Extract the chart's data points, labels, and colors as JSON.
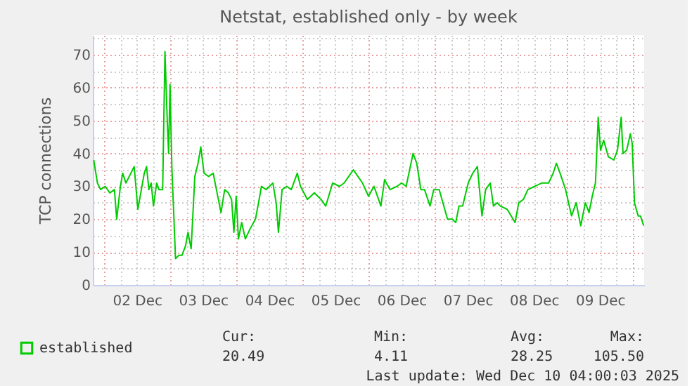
{
  "chart_data": {
    "type": "line",
    "title": "Netstat, established only - by week",
    "ylabel": "TCP connections",
    "xlim": [
      "2025-12-01T20:00",
      "2025-12-10T04:00"
    ],
    "ylim": [
      0,
      76
    ],
    "yticks": [
      0,
      {
        "value": 5,
        "label": null
      },
      10,
      {
        "value": 15,
        "label": null
      },
      20,
      {
        "value": 25,
        "label": null
      },
      30,
      {
        "value": 35,
        "label": null
      },
      40,
      {
        "value": 45,
        "label": null
      },
      50,
      {
        "value": 55,
        "label": null
      },
      60,
      {
        "value": 65,
        "label": null
      },
      70,
      {
        "value": 75,
        "label": null
      }
    ],
    "xticks": [
      {
        "value": "2025-12-02T00:00",
        "label": null
      },
      {
        "value": "2025-12-02T06:00",
        "label": null
      },
      {
        "value": "2025-12-02T12:00",
        "label": "02 Dec"
      },
      {
        "value": "2025-12-02T18:00",
        "label": null
      },
      {
        "value": "2025-12-03T00:00",
        "label": null
      },
      {
        "value": "2025-12-03T06:00",
        "label": null
      },
      {
        "value": "2025-12-03T12:00",
        "label": "03 Dec"
      },
      {
        "value": "2025-12-03T18:00",
        "label": null
      },
      {
        "value": "2025-12-04T00:00",
        "label": null
      },
      {
        "value": "2025-12-04T06:00",
        "label": null
      },
      {
        "value": "2025-12-04T12:00",
        "label": "04 Dec"
      },
      {
        "value": "2025-12-04T18:00",
        "label": null
      },
      {
        "value": "2025-12-05T00:00",
        "label": null
      },
      {
        "value": "2025-12-05T06:00",
        "label": null
      },
      {
        "value": "2025-12-05T12:00",
        "label": "05 Dec"
      },
      {
        "value": "2025-12-05T18:00",
        "label": null
      },
      {
        "value": "2025-12-06T00:00",
        "label": null
      },
      {
        "value": "2025-12-06T06:00",
        "label": null
      },
      {
        "value": "2025-12-06T12:00",
        "label": "06 Dec"
      },
      {
        "value": "2025-12-06T18:00",
        "label": null
      },
      {
        "value": "2025-12-07T00:00",
        "label": null
      },
      {
        "value": "2025-12-07T06:00",
        "label": null
      },
      {
        "value": "2025-12-07T12:00",
        "label": "07 Dec"
      },
      {
        "value": "2025-12-07T18:00",
        "label": null
      },
      {
        "value": "2025-12-08T00:00",
        "label": null
      },
      {
        "value": "2025-12-08T06:00",
        "label": null
      },
      {
        "value": "2025-12-08T12:00",
        "label": "08 Dec"
      },
      {
        "value": "2025-12-08T18:00",
        "label": null
      },
      {
        "value": "2025-12-09T00:00",
        "label": null
      },
      {
        "value": "2025-12-09T06:00",
        "label": null
      },
      {
        "value": "2025-12-09T12:00",
        "label": "09 Dec"
      },
      {
        "value": "2025-12-09T18:00",
        "label": null
      },
      {
        "value": "2025-12-10T00:00",
        "label": null
      }
    ],
    "grid": true,
    "legend": "bottom left",
    "annotations": [
      "Cur:",
      "Min:",
      "Avg:",
      "Max:",
      "20.49",
      "4.11",
      "28.25",
      "105.50",
      "Last update: Wed Dec 10 04:00:03 2025"
    ],
    "series": [
      {
        "name": "established",
        "color": "#00cc00",
        "x": [
          "2025-12-01T20:20",
          "2025-12-01T21:40",
          "2025-12-01T22:50",
          "2025-12-02T00:30",
          "2025-12-02T02:10",
          "2025-12-02T03:50",
          "2025-12-02T04:40",
          "2025-12-02T06:00",
          "2025-12-02T06:50",
          "2025-12-02T08:00",
          "2025-12-02T11:00",
          "2025-12-02T12:20",
          "2025-12-02T14:40",
          "2025-12-02T15:30",
          "2025-12-02T16:20",
          "2025-12-02T17:10",
          "2025-12-02T18:00",
          "2025-12-02T19:10",
          "2025-12-02T20:00",
          "2025-12-02T21:20",
          "2025-12-02T22:10",
          "2025-12-02T23:00",
          "2025-12-02T23:30",
          "2025-12-03T00:00",
          "2025-12-03T00:40",
          "2025-12-03T02:00",
          "2025-12-03T03:10",
          "2025-12-03T04:20",
          "2025-12-03T05:40",
          "2025-12-03T06:30",
          "2025-12-03T07:40",
          "2025-12-03T09:00",
          "2025-12-03T10:10",
          "2025-12-03T11:10",
          "2025-12-03T12:20",
          "2025-12-03T14:00",
          "2025-12-03T15:40",
          "2025-12-03T16:50",
          "2025-12-03T18:30",
          "2025-12-03T19:50",
          "2025-12-03T21:10",
          "2025-12-03T22:20",
          "2025-12-03T23:10",
          "2025-12-04T00:00",
          "2025-12-04T00:50",
          "2025-12-04T02:00",
          "2025-12-04T03:20",
          "2025-12-04T05:00",
          "2025-12-04T07:00",
          "2025-12-04T08:20",
          "2025-12-04T09:10",
          "2025-12-04T10:50",
          "2025-12-04T13:20",
          "2025-12-04T14:30",
          "2025-12-04T15:20",
          "2025-12-04T16:40",
          "2025-12-04T18:20",
          "2025-12-04T20:00",
          "2025-12-04T22:10",
          "2025-12-04T23:20",
          "2025-12-05T01:50",
          "2025-12-05T04:20",
          "2025-12-05T06:50",
          "2025-12-05T08:30",
          "2025-12-05T11:00",
          "2025-12-05T13:30",
          "2025-12-05T15:10",
          "2025-12-05T18:30",
          "2025-12-05T20:10",
          "2025-12-05T21:50",
          "2025-12-06T00:00",
          "2025-12-06T02:00",
          "2025-12-06T04:30",
          "2025-12-06T05:50",
          "2025-12-06T07:50",
          "2025-12-06T10:20",
          "2025-12-06T12:00",
          "2025-12-06T13:40",
          "2025-12-06T16:10",
          "2025-12-06T17:30",
          "2025-12-06T19:00",
          "2025-12-06T20:20",
          "2025-12-06T22:20",
          "2025-12-06T23:40",
          "2025-12-07T01:40",
          "2025-12-07T03:00",
          "2025-12-07T04:40",
          "2025-12-07T06:20",
          "2025-12-07T07:40",
          "2025-12-07T08:50",
          "2025-12-07T10:10",
          "2025-12-07T12:10",
          "2025-12-07T13:50",
          "2025-12-07T15:30",
          "2025-12-07T17:10",
          "2025-12-07T18:30",
          "2025-12-07T20:10",
          "2025-12-07T21:20",
          "2025-12-07T22:40",
          "2025-12-07T23:50",
          "2025-12-08T02:20",
          "2025-12-08T05:10",
          "2025-12-08T06:30",
          "2025-12-08T08:10",
          "2025-12-08T09:50",
          "2025-12-08T12:20",
          "2025-12-08T14:50",
          "2025-12-08T17:20",
          "2025-12-08T19:00",
          "2025-12-08T20:10",
          "2025-12-08T21:30",
          "2025-12-08T23:30",
          "2025-12-09T01:40",
          "2025-12-09T03:20",
          "2025-12-09T05:00",
          "2025-12-09T06:40",
          "2025-12-09T08:00",
          "2025-12-09T09:10",
          "2025-12-09T10:20",
          "2025-12-09T11:20",
          "2025-12-09T12:10",
          "2025-12-09T13:20",
          "2025-12-09T15:00",
          "2025-12-09T17:00",
          "2025-12-09T18:20",
          "2025-12-09T19:40",
          "2025-12-09T20:20",
          "2025-12-09T21:40",
          "2025-12-09T23:00",
          "2025-12-09T23:40",
          "2025-12-10T00:30",
          "2025-12-10T01:50",
          "2025-12-10T02:40",
          "2025-12-10T03:50"
        ],
        "values": [
          38,
          31,
          29,
          30,
          28,
          29,
          20,
          30,
          34,
          31,
          36,
          23,
          34,
          36,
          29,
          31,
          24,
          31,
          29,
          29,
          71,
          50,
          40,
          61,
          36,
          8,
          9,
          9,
          12,
          16,
          11,
          33,
          37,
          42,
          34,
          33,
          34,
          29,
          22,
          29,
          28,
          26,
          16,
          27,
          14,
          19,
          14,
          17,
          20,
          26,
          30,
          29,
          31,
          25,
          16,
          29,
          30,
          29,
          34,
          30,
          26,
          28,
          26,
          24,
          31,
          30,
          31,
          35,
          33,
          31,
          27,
          30,
          24,
          32,
          29,
          30,
          31,
          30,
          40,
          37,
          29,
          29,
          24,
          29,
          29,
          25,
          20,
          20,
          19,
          24,
          24,
          31,
          34,
          36,
          21,
          29,
          31,
          24,
          25,
          24,
          23,
          19,
          25,
          26,
          29,
          30,
          31,
          31,
          34,
          37,
          34,
          29,
          21,
          25,
          18,
          25,
          22,
          27,
          31,
          51,
          41,
          44,
          39,
          38,
          41,
          51,
          40,
          41,
          46,
          43,
          25,
          21,
          21,
          18
        ]
      }
    ]
  }
}
